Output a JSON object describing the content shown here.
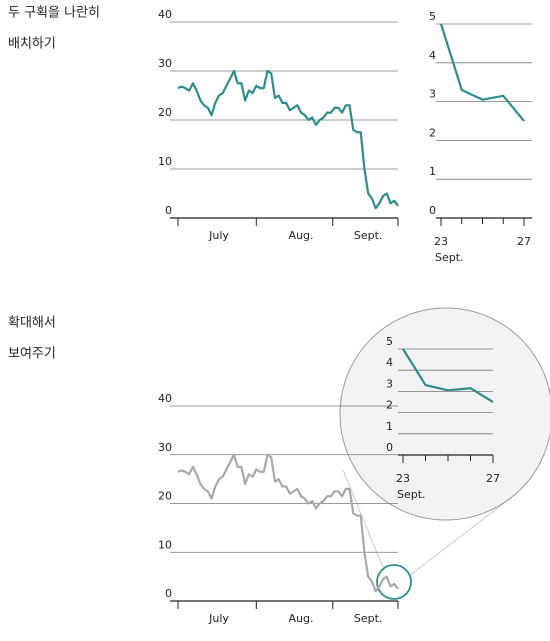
{
  "sections": [
    {
      "heading": [
        "두 구획을 나란히",
        "배치하기"
      ]
    },
    {
      "heading": [
        "확대해서",
        "보여주기"
      ]
    }
  ],
  "chart_data": [
    {
      "type": "line",
      "color": "#2e8c8c",
      "categories": [
        null,
        null,
        null,
        null,
        null,
        null,
        null,
        null,
        null,
        null,
        null,
        "July",
        null,
        null,
        null,
        null,
        null,
        null,
        null,
        null,
        null,
        null,
        null,
        null,
        null,
        null,
        null,
        null,
        null,
        null,
        null,
        null,
        null,
        "Aug.",
        null,
        null,
        null,
        null,
        null,
        null,
        null,
        null,
        null,
        null,
        null,
        null,
        null,
        null,
        null,
        null,
        null,
        "Sept.",
        null,
        null,
        null,
        null,
        null,
        null,
        null,
        null
      ],
      "values": [
        26.5,
        26.8,
        26.5,
        26,
        27.5,
        26,
        24,
        23,
        22.5,
        21,
        23.5,
        25,
        25.5,
        27,
        28.5,
        30,
        27.5,
        27.5,
        24,
        26,
        25.5,
        27,
        26.5,
        26.5,
        30,
        29.5,
        24.5,
        25,
        23.5,
        23.5,
        22,
        22.5,
        23,
        21.5,
        21,
        20,
        20.5,
        19,
        20,
        20.5,
        21.5,
        21.5,
        22.5,
        22.5,
        21.5,
        23,
        23,
        18,
        17.5,
        17.5,
        10,
        5,
        4,
        2,
        3,
        4.5,
        5,
        3,
        3.5,
        2.5
      ],
      "ylim": [
        0,
        40
      ],
      "yticks": [
        0,
        10,
        20,
        30,
        40
      ],
      "grid": true
    },
    {
      "type": "line",
      "color": "#2e8c8c",
      "x": [
        23,
        24,
        25,
        26,
        27
      ],
      "values": [
        5,
        3.3,
        3.05,
        3.15,
        2.5
      ],
      "xlim": [
        23,
        27
      ],
      "xticks": [
        23,
        27
      ],
      "x_axis_label": "Sept.",
      "ylim": [
        0,
        5
      ],
      "yticks": [
        0,
        1,
        2,
        3,
        4,
        5
      ],
      "grid": true
    },
    {
      "type": "line",
      "color": "#a8a8a8",
      "categories": [
        null,
        null,
        null,
        null,
        null,
        null,
        null,
        null,
        null,
        null,
        null,
        "July",
        null,
        null,
        null,
        null,
        null,
        null,
        null,
        null,
        null,
        null,
        null,
        null,
        null,
        null,
        null,
        null,
        null,
        null,
        null,
        null,
        null,
        "Aug.",
        null,
        null,
        null,
        null,
        null,
        null,
        null,
        null,
        null,
        null,
        null,
        null,
        null,
        null,
        null,
        null,
        null,
        "Sept.",
        null,
        null,
        null,
        null,
        null,
        null,
        null,
        null
      ],
      "values": [
        26.5,
        26.8,
        26.5,
        26,
        27.5,
        26,
        24,
        23,
        22.5,
        21,
        23.5,
        25,
        25.5,
        27,
        28.5,
        30,
        27.5,
        27.5,
        24,
        26,
        25.5,
        27,
        26.5,
        26.5,
        30,
        29.5,
        24.5,
        25,
        23.5,
        23.5,
        22,
        22.5,
        23,
        21.5,
        21,
        20,
        20.5,
        19,
        20,
        20.5,
        21.5,
        21.5,
        22.5,
        22.5,
        21.5,
        23,
        23,
        18,
        17.5,
        17.5,
        10,
        5,
        4,
        2,
        3,
        4.5,
        5,
        3,
        3.5,
        2.5
      ],
      "ylim": [
        0,
        40
      ],
      "yticks": [
        0,
        10,
        20,
        30,
        40
      ],
      "grid": true
    },
    {
      "type": "line",
      "color": "#2e8c8c",
      "x": [
        23,
        24,
        25,
        26,
        27
      ],
      "values": [
        5,
        3.3,
        3.05,
        3.15,
        2.5
      ],
      "xlim": [
        23,
        27
      ],
      "xticks": [
        23,
        27
      ],
      "x_axis_label": "Sept.",
      "ylim": [
        0,
        5
      ],
      "yticks": [
        0,
        1,
        2,
        3,
        4,
        5
      ],
      "grid": true
    }
  ]
}
